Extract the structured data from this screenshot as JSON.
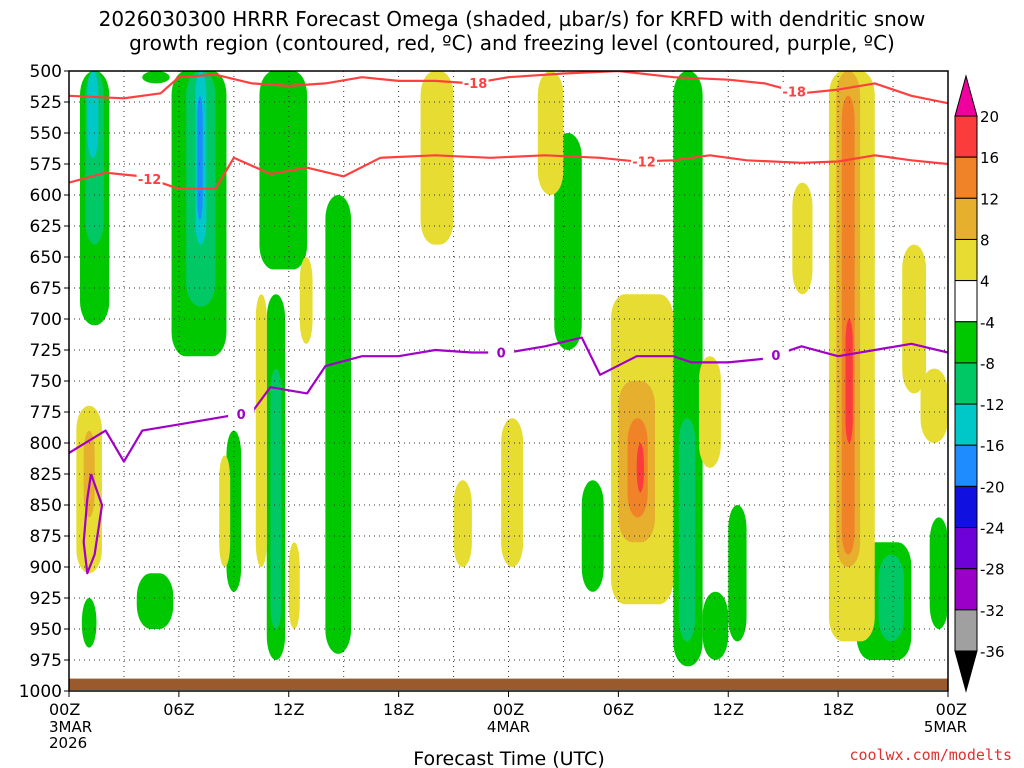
{
  "chart_data": {
    "type": "heatmap",
    "title": [
      "2026030300 HRRR Forecast Omega (shaded, µbar/s) for KRFD with dendritic snow",
      "growth region (contoured, red, ºC) and freezing level (contoured, purple, ºC)"
    ],
    "xlabel": "Forecast Time (UTC)",
    "ylabel": "",
    "credit": "coolwx.com/modelts",
    "x_range_hours": [
      0,
      48
    ],
    "x_ticks": [
      {
        "h": 0,
        "label": "00Z",
        "sub": [
          "3MAR",
          "2026"
        ]
      },
      {
        "h": 6,
        "label": "06Z",
        "sub": []
      },
      {
        "h": 12,
        "label": "12Z",
        "sub": []
      },
      {
        "h": 18,
        "label": "18Z",
        "sub": []
      },
      {
        "h": 24,
        "label": "00Z",
        "sub": [
          "4MAR"
        ]
      },
      {
        "h": 30,
        "label": "06Z",
        "sub": []
      },
      {
        "h": 36,
        "label": "12Z",
        "sub": []
      },
      {
        "h": 42,
        "label": "18Z",
        "sub": []
      },
      {
        "h": 48,
        "label": "00Z",
        "sub": [
          "5MAR"
        ]
      }
    ],
    "y_range_hpa": [
      500,
      1000
    ],
    "y_ticks": [
      "500",
      "525",
      "550",
      "575",
      "600",
      "625",
      "650",
      "675",
      "700",
      "725",
      "750",
      "775",
      "800",
      "825",
      "850",
      "875",
      "900",
      "925",
      "950",
      "975",
      "1000"
    ],
    "colorbar": {
      "levels": [
        -36,
        -32,
        -28,
        -24,
        -20,
        -16,
        -12,
        -8,
        -4,
        4,
        8,
        12,
        16,
        20
      ],
      "labels": [
        "20",
        "16",
        "12",
        "8",
        "4",
        "-4",
        "-8",
        "-12",
        "-16",
        "-20",
        "-24",
        "-28",
        "-32",
        "-36"
      ],
      "colors": [
        "#a0a0a0",
        "#9a00c8",
        "#6e00d8",
        "#1010e0",
        "#1e8cff",
        "#00c8c8",
        "#00c864",
        "#00c800",
        "#ffffff",
        "#e6dc32",
        "#e6af2d",
        "#f08228",
        "#fa3c3c",
        "#f0009c"
      ],
      "colors_top_to_bottom": [
        "#fa3c3c",
        "#f08228",
        "#e6af2d",
        "#e6dc32",
        "#ffffff",
        "#00c800",
        "#00c864",
        "#00c8c8",
        "#1e8cff",
        "#1010e0",
        "#6e00d8",
        "#9a00c8",
        "#a0a0a0"
      ]
    },
    "omega_regions": [
      {
        "h0": 0.6,
        "h1": 2.2,
        "p0": 500,
        "p1": 705,
        "v": -8
      },
      {
        "h0": 0.9,
        "h1": 1.9,
        "p0": 500,
        "p1": 640,
        "v": -12
      },
      {
        "h0": 1.0,
        "h1": 1.6,
        "p0": 500,
        "p1": 570,
        "v": -16
      },
      {
        "h0": 5.6,
        "h1": 8.6,
        "p0": 500,
        "p1": 730,
        "v": -8
      },
      {
        "h0": 6.4,
        "h1": 8.0,
        "p0": 500,
        "p1": 690,
        "v": -12
      },
      {
        "h0": 6.9,
        "h1": 7.5,
        "p0": 500,
        "p1": 640,
        "v": -16
      },
      {
        "h0": 7.0,
        "h1": 7.3,
        "p0": 520,
        "p1": 620,
        "v": -20
      },
      {
        "h0": 10.4,
        "h1": 13.0,
        "p0": 500,
        "p1": 660,
        "v": -8
      },
      {
        "h0": 10.8,
        "h1": 11.8,
        "p0": 680,
        "p1": 975,
        "v": -8
      },
      {
        "h0": 11.0,
        "h1": 11.6,
        "p0": 740,
        "p1": 950,
        "v": -12
      },
      {
        "h0": 14.0,
        "h1": 15.4,
        "p0": 600,
        "p1": 970,
        "v": -8
      },
      {
        "h0": 8.6,
        "h1": 9.4,
        "p0": 790,
        "p1": 920,
        "v": -8
      },
      {
        "h0": 3.7,
        "h1": 5.7,
        "p0": 905,
        "p1": 950,
        "v": -8
      },
      {
        "h0": 0.7,
        "h1": 1.5,
        "p0": 925,
        "p1": 965,
        "v": -8
      },
      {
        "h0": 26.5,
        "h1": 28.0,
        "p0": 550,
        "p1": 725,
        "v": -8
      },
      {
        "h0": 28.0,
        "h1": 29.2,
        "p0": 830,
        "p1": 920,
        "v": -8
      },
      {
        "h0": 33.0,
        "h1": 34.6,
        "p0": 500,
        "p1": 980,
        "v": -8
      },
      {
        "h0": 33.3,
        "h1": 34.2,
        "p0": 780,
        "p1": 960,
        "v": -12
      },
      {
        "h0": 34.6,
        "h1": 36.0,
        "p0": 920,
        "p1": 975,
        "v": -8
      },
      {
        "h0": 36.0,
        "h1": 37.0,
        "p0": 850,
        "p1": 960,
        "v": -8
      },
      {
        "h0": 43.0,
        "h1": 46.0,
        "p0": 880,
        "p1": 975,
        "v": -8
      },
      {
        "h0": 44.2,
        "h1": 45.6,
        "p0": 890,
        "p1": 960,
        "v": -12
      },
      {
        "h0": 47.0,
        "h1": 48.0,
        "p0": 860,
        "p1": 950,
        "v": -8
      },
      {
        "h0": 4.0,
        "h1": 5.5,
        "p0": 500,
        "p1": 510,
        "v": -8
      },
      {
        "h0": 0.4,
        "h1": 1.8,
        "p0": 770,
        "p1": 905,
        "v": 4
      },
      {
        "h0": 0.8,
        "h1": 1.4,
        "p0": 790,
        "p1": 860,
        "v": 8
      },
      {
        "h0": 8.2,
        "h1": 8.8,
        "p0": 810,
        "p1": 900,
        "v": 4
      },
      {
        "h0": 10.2,
        "h1": 10.8,
        "p0": 680,
        "p1": 900,
        "v": 4
      },
      {
        "h0": 12.6,
        "h1": 13.3,
        "p0": 650,
        "p1": 720,
        "v": 4
      },
      {
        "h0": 12.0,
        "h1": 12.6,
        "p0": 880,
        "p1": 950,
        "v": 4
      },
      {
        "h0": 19.2,
        "h1": 21.0,
        "p0": 500,
        "p1": 640,
        "v": 4
      },
      {
        "h0": 21.0,
        "h1": 22.0,
        "p0": 830,
        "p1": 900,
        "v": 4
      },
      {
        "h0": 23.6,
        "h1": 24.8,
        "p0": 780,
        "p1": 900,
        "v": 4
      },
      {
        "h0": 25.6,
        "h1": 27.0,
        "p0": 500,
        "p1": 600,
        "v": 4
      },
      {
        "h0": 29.6,
        "h1": 33.0,
        "p0": 680,
        "p1": 930,
        "v": 4
      },
      {
        "h0": 30.0,
        "h1": 32.0,
        "p0": 750,
        "p1": 880,
        "v": 8
      },
      {
        "h0": 30.5,
        "h1": 31.6,
        "p0": 780,
        "p1": 860,
        "v": 12
      },
      {
        "h0": 31.0,
        "h1": 31.4,
        "p0": 800,
        "p1": 840,
        "v": 16
      },
      {
        "h0": 34.4,
        "h1": 35.6,
        "p0": 730,
        "p1": 820,
        "v": 4
      },
      {
        "h0": 39.5,
        "h1": 40.6,
        "p0": 590,
        "p1": 680,
        "v": 4
      },
      {
        "h0": 41.5,
        "h1": 44.0,
        "p0": 500,
        "p1": 960,
        "v": 4
      },
      {
        "h0": 41.9,
        "h1": 43.2,
        "p0": 500,
        "p1": 900,
        "v": 8
      },
      {
        "h0": 42.2,
        "h1": 42.9,
        "p0": 520,
        "p1": 890,
        "v": 12
      },
      {
        "h0": 42.4,
        "h1": 42.8,
        "p0": 700,
        "p1": 800,
        "v": 16
      },
      {
        "h0": 45.5,
        "h1": 46.8,
        "p0": 640,
        "p1": 760,
        "v": 4
      },
      {
        "h0": 46.5,
        "h1": 48.0,
        "p0": 740,
        "p1": 800,
        "v": 4
      }
    ],
    "contours": [
      {
        "name": "-18",
        "color": "#ff4040",
        "label_at_h": [
          22.2,
          39.6
        ],
        "points": [
          [
            0,
            520
          ],
          [
            3,
            522
          ],
          [
            5,
            518
          ],
          [
            6,
            505
          ],
          [
            8,
            503
          ],
          [
            10,
            510
          ],
          [
            12,
            512
          ],
          [
            14,
            510
          ],
          [
            16,
            505
          ],
          [
            18,
            508
          ],
          [
            20,
            508
          ],
          [
            22,
            510
          ],
          [
            24,
            505
          ],
          [
            27,
            502
          ],
          [
            30,
            500
          ],
          [
            33,
            505
          ],
          [
            36,
            507
          ],
          [
            38,
            510
          ],
          [
            40,
            518
          ],
          [
            42,
            515
          ],
          [
            44,
            510
          ],
          [
            46,
            520
          ],
          [
            48,
            526
          ]
        ]
      },
      {
        "name": "-12",
        "color": "#ff4040",
        "label_at_h": [
          4.4,
          31.4
        ],
        "points": [
          [
            0,
            590
          ],
          [
            2,
            582
          ],
          [
            4,
            585
          ],
          [
            6,
            595
          ],
          [
            8,
            595
          ],
          [
            9,
            570
          ],
          [
            11,
            583
          ],
          [
            13,
            578
          ],
          [
            15,
            585
          ],
          [
            17,
            570
          ],
          [
            20,
            568
          ],
          [
            23,
            570
          ],
          [
            26,
            568
          ],
          [
            29,
            570
          ],
          [
            31,
            573
          ],
          [
            33,
            572
          ],
          [
            35,
            568
          ],
          [
            37,
            572
          ],
          [
            40,
            574
          ],
          [
            42,
            573
          ],
          [
            44,
            568
          ],
          [
            46,
            572
          ],
          [
            48,
            575
          ]
        ]
      },
      {
        "name": "0",
        "color": "#a000c8",
        "label_at_h": [
          9.4,
          23.6,
          38.6
        ],
        "points": [
          [
            0,
            808
          ],
          [
            2,
            790
          ],
          [
            3,
            815
          ],
          [
            4,
            790
          ],
          [
            6,
            785
          ],
          [
            8,
            780
          ],
          [
            10,
            775
          ],
          [
            11,
            755
          ],
          [
            13,
            760
          ],
          [
            14,
            738
          ],
          [
            16,
            730
          ],
          [
            18,
            730
          ],
          [
            20,
            725
          ],
          [
            22,
            727
          ],
          [
            24,
            727
          ],
          [
            26,
            722
          ],
          [
            28,
            715
          ],
          [
            29,
            745
          ],
          [
            31,
            730
          ],
          [
            33,
            730
          ],
          [
            34,
            735
          ],
          [
            36,
            735
          ],
          [
            38,
            732
          ],
          [
            40,
            722
          ],
          [
            42,
            730
          ],
          [
            44,
            725
          ],
          [
            46,
            720
          ],
          [
            48,
            727
          ]
        ]
      },
      {
        "name": "0-loop",
        "color": "#a000c8",
        "label_at_h": [],
        "points": [
          [
            1.2,
            825
          ],
          [
            1.8,
            850
          ],
          [
            1.4,
            890
          ],
          [
            1.0,
            905
          ],
          [
            0.8,
            880
          ],
          [
            1.0,
            845
          ],
          [
            1.2,
            825
          ]
        ]
      }
    ]
  }
}
